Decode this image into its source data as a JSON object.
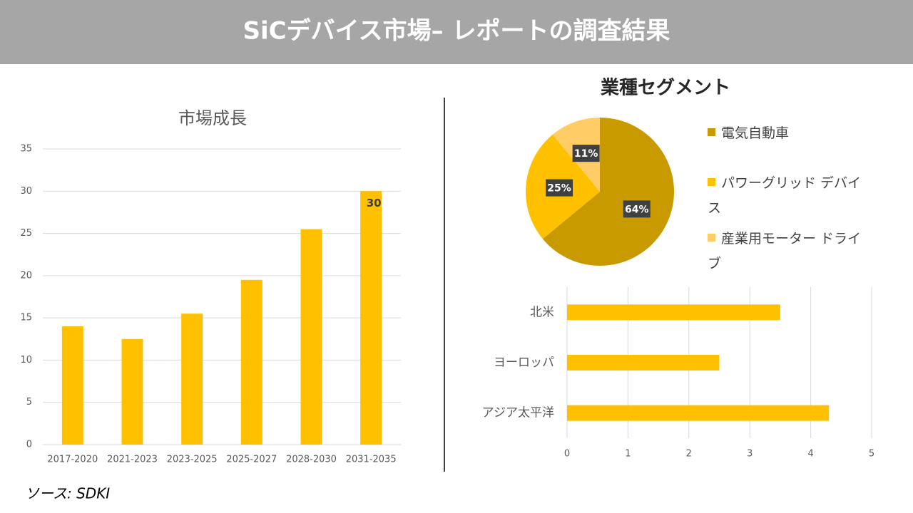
{
  "header": {
    "title": "SiCデバイス市場– レポートの調査結果"
  },
  "source": "ソース: SDKI",
  "chart_data": [
    {
      "type": "bar",
      "title": "市場成長",
      "categories": [
        "2017-2020",
        "2021-2023",
        "2023-2025",
        "2025-2027",
        "2028-2030",
        "2031-2035"
      ],
      "values": [
        14,
        12.5,
        15.5,
        19.5,
        25.5,
        30
      ],
      "show_value": [
        false,
        false,
        false,
        false,
        false,
        true
      ],
      "color": "#FFC000",
      "ylim": [
        0,
        35
      ],
      "yticks": [
        0,
        5,
        10,
        15,
        20,
        25,
        30,
        35
      ],
      "grid": true
    },
    {
      "type": "pie",
      "title": "業種セグメント",
      "categories": [
        "電気自動車",
        "パワーグリッド デバイス",
        "産業用モーター ドライブ"
      ],
      "values": [
        64,
        25,
        11
      ],
      "value_labels": [
        "64%",
        "25%",
        "11%"
      ],
      "colors": [
        "#C99A00",
        "#FFC000",
        "#FFCC66"
      ],
      "legend": "right"
    },
    {
      "type": "hbar",
      "categories": [
        "北米",
        "ヨーロッパ",
        "アジア太平洋"
      ],
      "values": [
        3.5,
        2.5,
        4.3
      ],
      "color": "#FFC000",
      "xlim": [
        0,
        5
      ],
      "xticks": [
        0,
        1,
        2,
        3,
        4,
        5
      ],
      "grid": true
    }
  ]
}
